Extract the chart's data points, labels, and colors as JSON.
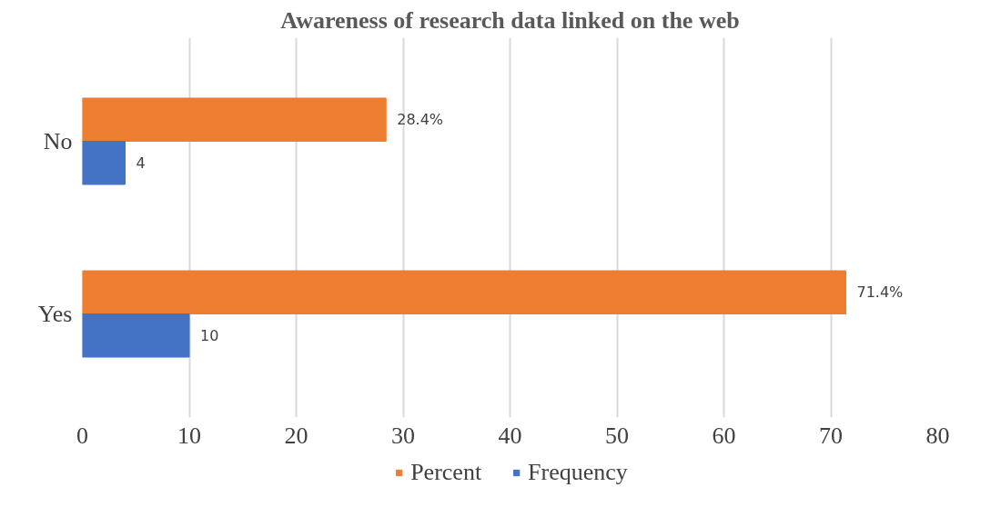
{
  "chart_data": {
    "type": "bar",
    "orientation": "horizontal",
    "title": "Awareness of research data linked on the web",
    "categories": [
      "No",
      "Yes"
    ],
    "series": [
      {
        "name": "Percent",
        "color": "#ed7d31",
        "values": [
          28.4,
          71.4
        ],
        "value_labels": [
          "28.4%",
          "71.4%"
        ]
      },
      {
        "name": "Frequency",
        "color": "#4472c4",
        "values": [
          4,
          10
        ],
        "value_labels": [
          "4",
          "10"
        ]
      }
    ],
    "xlim": [
      0,
      80
    ],
    "xticks": [
      0,
      10,
      20,
      30,
      40,
      50,
      60,
      70,
      80
    ],
    "grid": "x",
    "legend": "bottom"
  }
}
